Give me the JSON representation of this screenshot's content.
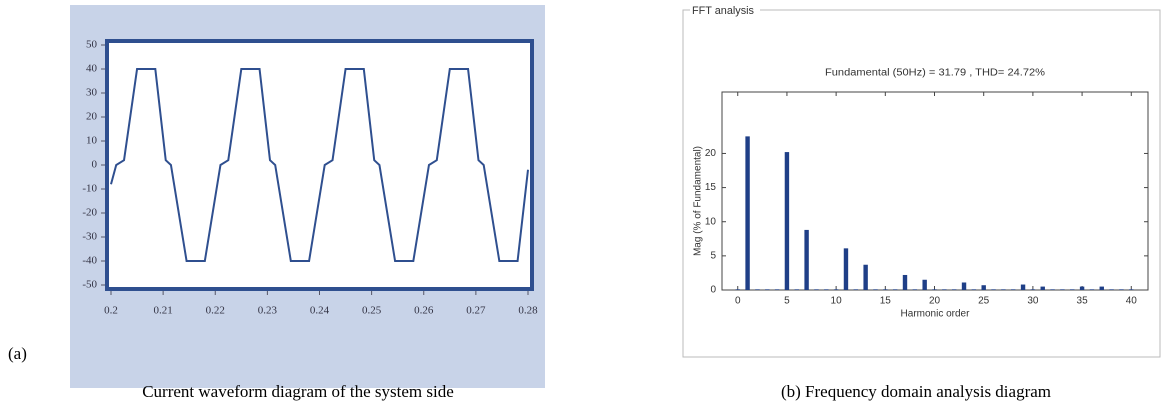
{
  "chart_data": [
    {
      "type": "line",
      "x": [
        0.2,
        0.201,
        0.2025,
        0.205,
        0.2085,
        0.2105,
        0.2115,
        0.2145,
        0.218,
        0.221,
        0.2225,
        0.225,
        0.2285,
        0.2305,
        0.2315,
        0.2345,
        0.238,
        0.241,
        0.2425,
        0.245,
        0.2485,
        0.2505,
        0.2515,
        0.2545,
        0.258,
        0.261,
        0.2625,
        0.265,
        0.2685,
        0.2705,
        0.2715,
        0.2745,
        0.278,
        0.28
      ],
      "series": [
        {
          "color": "#2f4f8f",
          "values": [
            -8,
            0,
            2,
            40,
            40,
            2,
            0,
            -40,
            -40,
            0,
            2,
            40,
            40,
            2,
            0,
            -40,
            -40,
            0,
            2,
            40,
            40,
            2,
            0,
            -40,
            -40,
            0,
            2,
            40,
            40,
            2,
            0,
            -40,
            -40,
            -2
          ]
        }
      ],
      "xlim": [
        0.2,
        0.28
      ],
      "xticks": [
        0.2,
        0.21,
        0.22,
        0.23,
        0.24,
        0.25,
        0.26,
        0.27,
        0.28
      ],
      "ylim": [
        -50,
        50
      ],
      "yticks": [
        50,
        40,
        30,
        20,
        10,
        0,
        -10,
        -20,
        -30,
        -40,
        -50
      ]
    },
    {
      "type": "bar",
      "title": "FFT analysis",
      "subtitle": "Fundamental (50Hz) = 31.79 , THD= 24.72%",
      "xlabel": "Harmonic order",
      "ylabel": "Mag (% of Fundamental)",
      "x": [
        0,
        1,
        2,
        3,
        4,
        5,
        6,
        7,
        8,
        9,
        10,
        11,
        12,
        13,
        14,
        15,
        16,
        17,
        18,
        19,
        20,
        21,
        22,
        23,
        24,
        25,
        26,
        27,
        28,
        29,
        30,
        31,
        32,
        33,
        34,
        35,
        36,
        37,
        38,
        39,
        40
      ],
      "values": [
        0.1,
        22.5,
        0.1,
        0.1,
        0.1,
        20.2,
        0.1,
        8.8,
        0.1,
        0.1,
        0.1,
        6.1,
        0.1,
        3.7,
        0.1,
        0.1,
        0.1,
        2.2,
        0.1,
        1.5,
        0.1,
        0.1,
        0.1,
        1.1,
        0.1,
        0.7,
        0.1,
        0.1,
        0.1,
        0.8,
        0.1,
        0.5,
        0.1,
        0.1,
        0.1,
        0.5,
        0.1,
        0.5,
        0.1,
        0.1,
        0.1
      ],
      "color": "#1f3f87",
      "xlim": [
        -1.6,
        41.7
      ],
      "xticks": [
        0,
        5,
        10,
        15,
        20,
        25,
        30,
        35,
        40
      ],
      "ylim": [
        0,
        29
      ],
      "yticks": [
        0,
        5,
        10,
        15,
        20
      ]
    }
  ],
  "captions": {
    "panel_a": "(a)",
    "a": "Current waveform diagram of the system side",
    "b": "(b) Frequency domain analysis diagram"
  }
}
